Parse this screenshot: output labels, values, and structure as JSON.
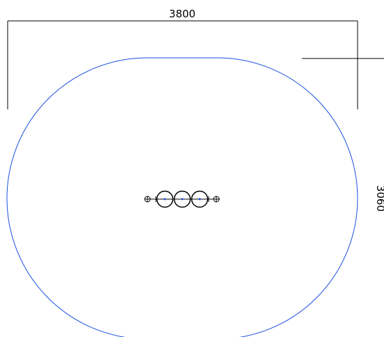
{
  "dimensions": {
    "width": "3800",
    "height": "3060"
  }
}
